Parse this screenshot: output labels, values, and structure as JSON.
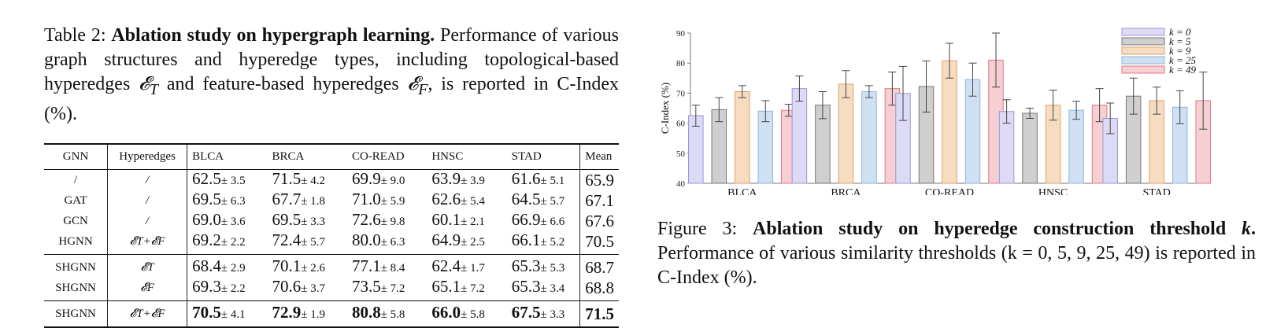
{
  "table": {
    "caption_prefix": "Table 2:",
    "caption_bold": "Ablation study on hypergraph learning.",
    "caption_rest_1": "Performance of various graph structures and hyperedge types, including topological-based hyperedges",
    "sym_T": "𝓔",
    "sub_T": "T",
    "caption_rest_2": "and feature-based hyperedges",
    "sym_F": "𝓔",
    "sub_F": "F",
    "caption_rest_3": ", is reported in C-Index (%).",
    "headers": [
      "GNN",
      "Hyperedges",
      "BLCA",
      "BRCA",
      "CO-READ",
      "HNSC",
      "STAD",
      "Mean"
    ],
    "groups": [
      [
        {
          "gnn": "/",
          "hyper": "/",
          "vals": [
            [
              "62.5",
              "± 3.5"
            ],
            [
              "71.5",
              "± 4.2"
            ],
            [
              "69.9",
              "± 9.0"
            ],
            [
              "63.9",
              "± 3.9"
            ],
            [
              "61.6",
              "± 5.1"
            ]
          ],
          "mean": "65.9"
        },
        {
          "gnn": "GAT",
          "hyper": "/",
          "vals": [
            [
              "69.5",
              "± 6.3"
            ],
            [
              "67.7",
              "± 1.8"
            ],
            [
              "71.0",
              "± 5.9"
            ],
            [
              "62.6",
              "± 5.4"
            ],
            [
              "64.5",
              "± 5.7"
            ]
          ],
          "mean": "67.1"
        },
        {
          "gnn": "GCN",
          "hyper": "/",
          "vals": [
            [
              "69.0",
              "± 3.6"
            ],
            [
              "69.5",
              "± 3.3"
            ],
            [
              "72.6",
              "± 9.8"
            ],
            [
              "60.1",
              "± 2.1"
            ],
            [
              "66.9",
              "± 6.6"
            ]
          ],
          "mean": "67.6"
        },
        {
          "gnn": "HGNN",
          "hyper": "𝓔T+𝓔F",
          "vals": [
            [
              "69.2",
              "± 2.2"
            ],
            [
              "72.4",
              "± 5.7"
            ],
            [
              "80.0",
              "± 6.3"
            ],
            [
              "64.9",
              "± 2.5"
            ],
            [
              "66.1",
              "± 5.2"
            ]
          ],
          "mean": "70.5"
        }
      ],
      [
        {
          "gnn": "SHGNN",
          "hyper": "𝓔T",
          "vals": [
            [
              "68.4",
              "± 2.9"
            ],
            [
              "70.1",
              "± 2.6"
            ],
            [
              "77.1",
              "± 8.4"
            ],
            [
              "62.4",
              "± 1.7"
            ],
            [
              "65.3",
              "± 5.3"
            ]
          ],
          "mean": "68.7"
        },
        {
          "gnn": "SHGNN",
          "hyper": "𝓔F",
          "vals": [
            [
              "69.3",
              "± 2.2"
            ],
            [
              "70.6",
              "± 3.7"
            ],
            [
              "73.5",
              "± 7.2"
            ],
            [
              "65.1",
              "± 7.2"
            ],
            [
              "65.3",
              "± 3.4"
            ]
          ],
          "mean": "68.8"
        }
      ],
      [
        {
          "gnn": "SHGNN",
          "hyper": "𝓔T+𝓔F",
          "vals": [
            [
              "70.5",
              "± 4.1"
            ],
            [
              "72.9",
              "± 1.9"
            ],
            [
              "80.8",
              "± 5.8"
            ],
            [
              "66.0",
              "± 5.8"
            ],
            [
              "67.5",
              "± 3.3"
            ]
          ],
          "mean": "71.5",
          "best": true
        }
      ]
    ]
  },
  "figure": {
    "caption_prefix": "Figure 3:",
    "caption_bold": "Ablation study on hyperedge construction threshold",
    "caption_bold_k": "k",
    "caption_bold_end": ".",
    "caption_rest": "Performance of various similarity thresholds (k = 0, 5, 9, 25, 49) is reported in C-Index (%)."
  },
  "chart_data": {
    "type": "bar",
    "categories": [
      "BLCA",
      "BRCA",
      "CO-READ",
      "HNSC",
      "STAD"
    ],
    "ylabel": "C-Index (%)",
    "ylim": [
      40,
      90
    ],
    "yticks": [
      40,
      50,
      60,
      70,
      80,
      90
    ],
    "legend_position": "top-right",
    "series": [
      {
        "name": "k = 0",
        "fill": "#dcdaf4",
        "stroke": "#9c96d8",
        "values": [
          62.5,
          71.5,
          69.9,
          63.9,
          61.6
        ],
        "err": [
          3.5,
          4.2,
          9.0,
          3.9,
          5.1
        ]
      },
      {
        "name": "k = 5",
        "fill": "#cfcfcf",
        "stroke": "#777777",
        "values": [
          64.5,
          66.0,
          72.2,
          63.3,
          69.0
        ],
        "err": [
          4.0,
          4.5,
          8.5,
          1.7,
          6.0
        ]
      },
      {
        "name": "k = 9",
        "fill": "#f6dcc0",
        "stroke": "#e0a06a",
        "values": [
          70.5,
          73.0,
          80.8,
          66.0,
          67.5
        ],
        "err": [
          2.0,
          4.5,
          5.8,
          5.0,
          4.5
        ]
      },
      {
        "name": "k = 25",
        "fill": "#cfe0f2",
        "stroke": "#8fb4dc",
        "values": [
          64.0,
          70.5,
          74.5,
          64.3,
          65.3
        ],
        "err": [
          3.5,
          2.0,
          5.5,
          3.0,
          5.5
        ]
      },
      {
        "name": "k = 49",
        "fill": "#f6cfd2",
        "stroke": "#e07a85",
        "values": [
          64.3,
          71.5,
          81.0,
          66.0,
          67.5
        ],
        "err": [
          2.0,
          5.5,
          9.0,
          5.5,
          9.5
        ]
      }
    ]
  }
}
